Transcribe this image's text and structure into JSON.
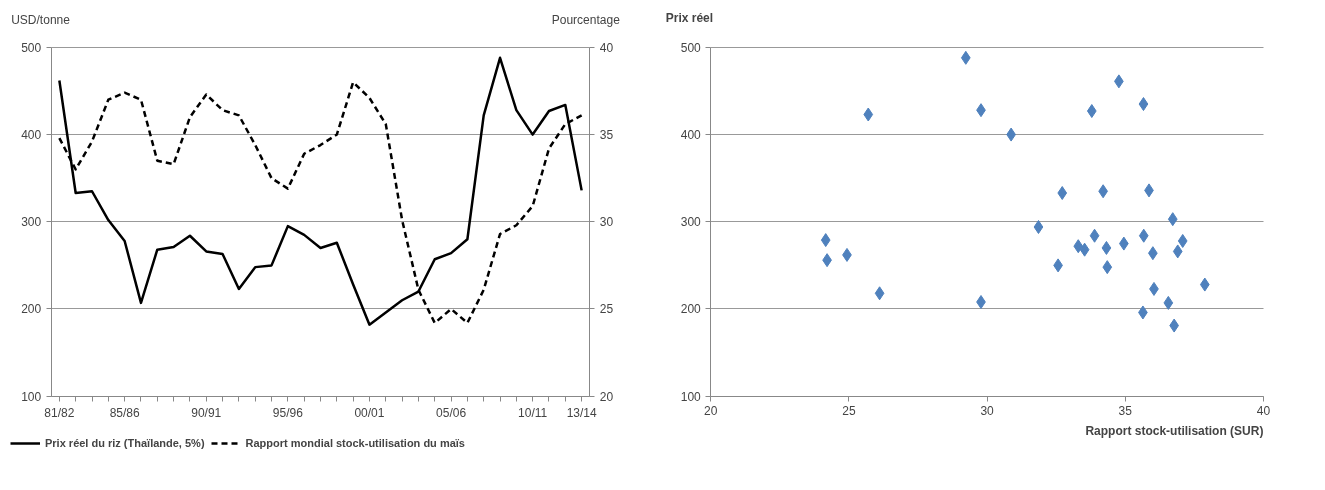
{
  "chart_data": [
    {
      "type": "line",
      "ylabel": "USD/tonne",
      "y2label": "Pourcentage",
      "categories": [
        "81/82",
        null,
        null,
        null,
        "85/86",
        null,
        null,
        null,
        null,
        "90/91",
        null,
        null,
        null,
        null,
        "95/96",
        null,
        null,
        null,
        null,
        "00/01",
        null,
        null,
        null,
        null,
        "05/06",
        null,
        null,
        null,
        null,
        "10/11",
        null,
        null,
        "13/14"
      ],
      "series": [
        {
          "name": "Prix réel du riz (Thaïlande, 5%)",
          "color": "#000000",
          "line_style": "solid",
          "values": [
            462,
            333,
            335,
            302,
            278,
            207,
            268,
            271,
            284,
            266,
            263,
            223,
            248,
            250,
            295,
            285,
            270,
            276,
            228,
            182,
            196,
            210,
            220,
            257,
            264,
            280,
            422,
            488,
            428,
            400,
            427,
            434,
            336
          ]
        },
        {
          "name": "Rapport mondial stock-utilisation du maïs",
          "color": "#000000",
          "line_style": "dashed",
          "axis": "y2",
          "values": [
            34.8,
            33.0,
            34.6,
            37.0,
            37.4,
            37.0,
            33.5,
            33.3,
            36.0,
            37.3,
            36.4,
            36.1,
            34.4,
            32.5,
            31.9,
            33.9,
            34.4,
            35.0,
            38.0,
            37.1,
            35.6,
            30.1,
            26.1,
            24.2,
            25.0,
            24.2,
            26.1,
            29.3,
            29.8,
            30.9,
            34.2,
            35.6,
            36.1
          ]
        }
      ],
      "ylim": [
        100,
        500
      ],
      "yticks": [
        100,
        200,
        300,
        400,
        500
      ],
      "y2lim": [
        20,
        40
      ],
      "y2ticks": [
        20,
        25,
        30,
        35,
        40
      ],
      "grid": "y",
      "legend": "bottom",
      "marker": "none"
    },
    {
      "type": "scatter",
      "ylabel": "Prix réel",
      "xlabel": "Rapport stock-utilisation (SUR)",
      "x": [
        29.23,
        29.78,
        33.79,
        34.77,
        35.66,
        30.87,
        32.72,
        34.2,
        35.86,
        31.86,
        36.72,
        33.89,
        35.67,
        33.3,
        33.53,
        34.32,
        34.95,
        37.08,
        36.9,
        36.0,
        32.57,
        34.35,
        36.04,
        37.88,
        29.78,
        36.56,
        35.64,
        36.77,
        24.16,
        24.21,
        24.93,
        25.7,
        26.11
      ],
      "series": [
        {
          "color": "#4f81bd",
          "values": [
            488,
            428,
            427,
            461,
            435,
            400,
            333,
            335,
            336,
            294,
            303,
            284,
            284,
            272,
            268,
            270,
            275,
            278,
            266,
            264,
            250,
            248,
            223,
            228,
            208,
            207,
            196,
            181,
            279,
            256,
            262,
            423,
            218
          ]
        }
      ],
      "xlim": [
        20,
        40
      ],
      "xticks": [
        20,
        25,
        30,
        35,
        40
      ],
      "ylim": [
        100,
        500
      ],
      "yticks": [
        100,
        200,
        300,
        400,
        500
      ],
      "grid": "y",
      "marker": "diamond"
    }
  ]
}
